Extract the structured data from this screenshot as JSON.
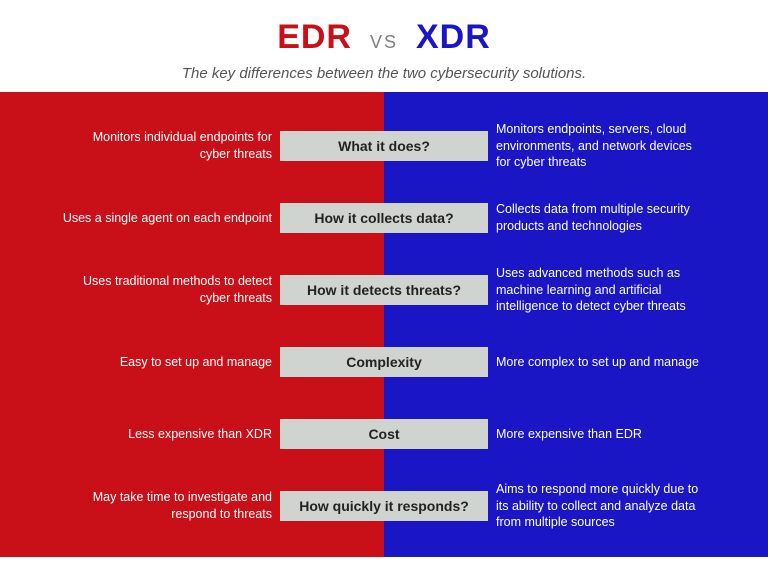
{
  "colors": {
    "left_bg": "#c90f18",
    "right_bg": "#1a16c6",
    "left_title": "#c90f18",
    "right_title": "#1a16c6",
    "vs_color": "#808080",
    "subtitle_color": "#555555",
    "pill_bg": "#cfd4d0",
    "pill_border_left": "#c90f18",
    "pill_border_right": "#1a16c6",
    "text_white": "#ffffff"
  },
  "header": {
    "left_title": "EDR",
    "vs": "VS",
    "right_title": "XDR",
    "subtitle": "The key differences between the two cybersecurity solutions."
  },
  "rows": [
    {
      "label": "What it does?",
      "left": "Monitors individual endpoints for cyber threats",
      "right": "Monitors endpoints, servers, cloud environments, and network devices for cyber threats"
    },
    {
      "label": "How it collects data?",
      "left": "Uses a single agent on each endpoint",
      "right": "Collects data from multiple security products and technologies"
    },
    {
      "label": "How it detects threats?",
      "left": "Uses traditional methods to detect cyber threats",
      "right": "Uses advanced methods such as machine learning and artificial intelligence to detect cyber threats"
    },
    {
      "label": "Complexity",
      "left": "Easy to set up and manage",
      "right": "More complex to set up and manage"
    },
    {
      "label": "Cost",
      "left": "Less expensive than XDR",
      "right": "More expensive than EDR"
    },
    {
      "label": "How quickly it responds?",
      "left": "May take time to investigate and respond to threats",
      "right": "Aims to respond more quickly due to its ability to collect and analyze data from multiple sources"
    }
  ]
}
